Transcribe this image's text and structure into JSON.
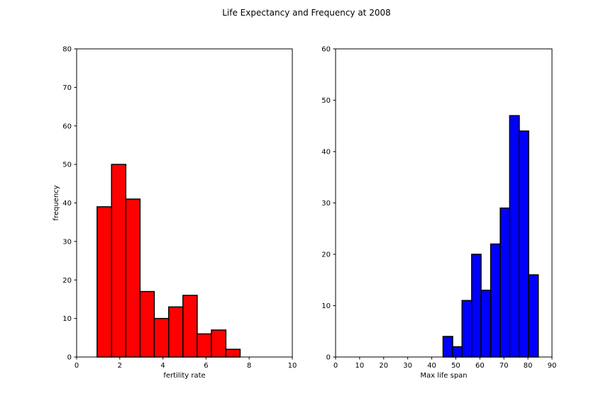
{
  "figure": {
    "suptitle": "Life Expectancy and Frequency at 2008"
  },
  "chart_data": [
    {
      "type": "bar",
      "subtype": "histogram",
      "title": "",
      "xlabel": "fertility rate",
      "ylabel": "frequency",
      "xlim": [
        0,
        10
      ],
      "ylim": [
        0,
        80
      ],
      "xticks": [
        0,
        2,
        4,
        6,
        8,
        10
      ],
      "yticks": [
        0,
        10,
        20,
        30,
        40,
        50,
        60,
        70,
        80
      ],
      "bin_edges": [
        0.95,
        1.62,
        2.28,
        2.94,
        3.6,
        4.27,
        4.93,
        5.59,
        6.25,
        6.92,
        7.58
      ],
      "values": [
        39,
        50,
        41,
        17,
        10,
        13,
        16,
        6,
        7,
        2
      ],
      "color": "#ff0000",
      "edgecolor": "#000000",
      "grid": false
    },
    {
      "type": "bar",
      "subtype": "histogram",
      "title": "",
      "xlabel": "Max life span",
      "ylabel": "",
      "xlim": [
        0,
        90
      ],
      "ylim": [
        0,
        60
      ],
      "xticks": [
        0,
        10,
        20,
        30,
        40,
        50,
        60,
        70,
        80,
        90
      ],
      "yticks": [
        0,
        10,
        20,
        30,
        40,
        50,
        60
      ],
      "bin_edges": [
        44.7,
        48.7,
        52.6,
        56.6,
        60.5,
        64.5,
        68.5,
        72.4,
        76.4,
        80.3,
        84.3
      ],
      "values": [
        4,
        2,
        11,
        20,
        13,
        22,
        29,
        47,
        44,
        16
      ],
      "color": "#0000ff",
      "edgecolor": "#000000",
      "grid": false
    }
  ]
}
